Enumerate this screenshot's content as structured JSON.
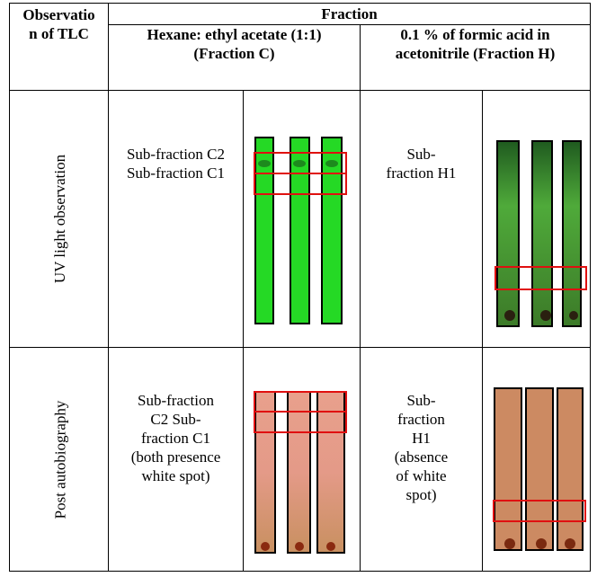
{
  "header": {
    "observation": "Observation of TLC",
    "fraction": "Fraction",
    "fraction_c": "Hexane: ethyl acetate (1:1) (Fraction C)",
    "fraction_h": "0.1 % of formic acid in acetonitrile (Fraction H)"
  },
  "rows": [
    {
      "label": "UV light observation",
      "c_text": "Sub-fraction C2 Sub-fraction C1",
      "h_text": "Sub-fraction H1"
    },
    {
      "label": "Post autobiography",
      "c_text": "Sub-fraction C2 Sub-fraction C1 (both presence white spot)",
      "h_text": "Sub-fraction H1 (absence of white spot)"
    }
  ]
}
